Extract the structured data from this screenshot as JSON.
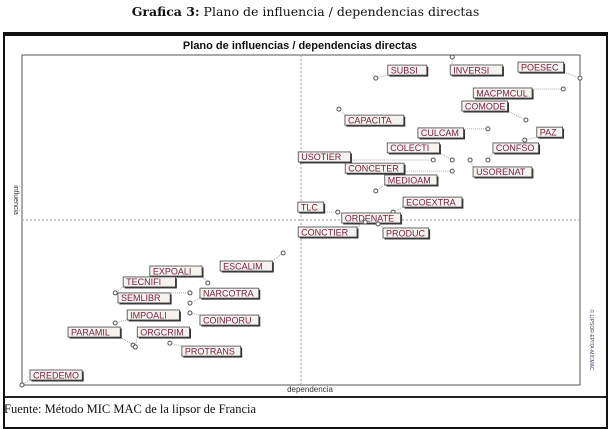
{
  "caption": {
    "prefix": "Grafica 3:",
    "text": " Plano de influencia / dependencias directas"
  },
  "source": "Fuente: Método MIC MAC de la lipsor  de Francia",
  "watermark": "© LIPSOR-EPITA-MICMAC",
  "chart_data": {
    "type": "scatter",
    "title": "Plano de influencias / dependencias directas",
    "xlabel": "dependencia",
    "ylabel": "influencia",
    "xlim": [
      0,
      100
    ],
    "ylim": [
      0,
      100
    ],
    "quadrant_lines": {
      "x": 50,
      "y": 50,
      "style": "dotted"
    },
    "grid": false,
    "points": [
      {
        "label": "POESEC",
        "x": 100,
        "y": 93.0
      },
      {
        "label": "INVERSI",
        "x": 77.1,
        "y": 99.4
      },
      {
        "label": "SUBSI",
        "x": 63.4,
        "y": 93.0
      },
      {
        "label": "MACPMCUL",
        "x": 97.0,
        "y": 89.7
      },
      {
        "label": "COMODE",
        "x": 90.3,
        "y": 80.3
      },
      {
        "label": "CAPACITA",
        "x": 56.8,
        "y": 83.6
      },
      {
        "label": "CULCAM",
        "x": 83.5,
        "y": 77.6
      },
      {
        "label": "PAZ",
        "x": 90.1,
        "y": 74.2
      },
      {
        "label": "CONFSO",
        "x": 83.5,
        "y": 68.2
      },
      {
        "label": "COLECTI",
        "x": 77.1,
        "y": 68.2
      },
      {
        "label": "USOTIER",
        "x": 73.7,
        "y": 68.2
      },
      {
        "label": "CONCETER",
        "x": 77.1,
        "y": 64.8
      },
      {
        "label": "USORENAT",
        "x": 80.3,
        "y": 68.2
      },
      {
        "label": "MEDIOAM",
        "x": 63.4,
        "y": 58.8
      },
      {
        "label": "ECOEXTRA",
        "x": 66.5,
        "y": 52.4
      },
      {
        "label": "TLC",
        "x": 56.6,
        "y": 52.4
      },
      {
        "label": "ORDENATE",
        "x": 63.4,
        "y": 49.4
      },
      {
        "label": "CONCTIER",
        "x": 61.5,
        "y": 49.4
      },
      {
        "label": "PRODUC",
        "x": 63.8,
        "y": 48.8
      },
      {
        "label": "ESCALIM",
        "x": 46.8,
        "y": 40.0
      },
      {
        "label": "EXPOALI",
        "x": 33.3,
        "y": 30.9
      },
      {
        "label": "TECNIFI",
        "x": 16.7,
        "y": 27.9
      },
      {
        "label": "SEMLIBR",
        "x": 30.1,
        "y": 27.9
      },
      {
        "label": "NARCOTRA",
        "x": 30.1,
        "y": 24.8
      },
      {
        "label": "COINPORU",
        "x": 30.1,
        "y": 21.8
      },
      {
        "label": "IMPOALI",
        "x": 16.7,
        "y": 18.8
      },
      {
        "label": "PARAMIL",
        "x": 19.9,
        "y": 12.1
      },
      {
        "label": "ORGCRIM",
        "x": 20.3,
        "y": 11.5
      },
      {
        "label": "PROTRANS",
        "x": 26.5,
        "y": 12.7
      },
      {
        "label": "CREDEMO",
        "x": 0,
        "y": 0
      }
    ]
  }
}
